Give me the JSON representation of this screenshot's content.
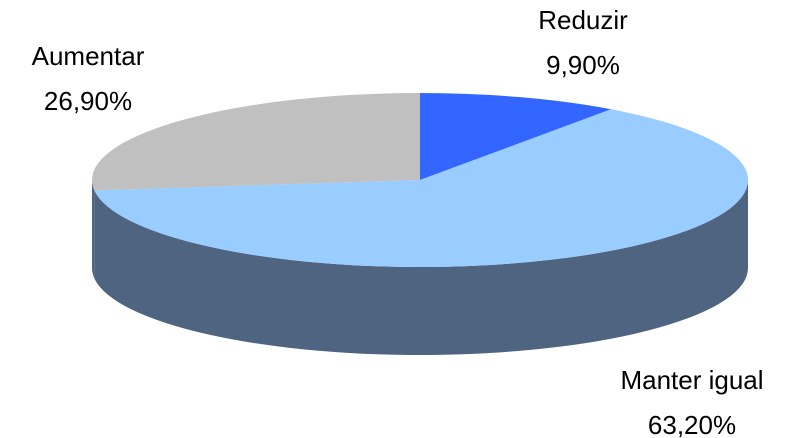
{
  "chart_data": {
    "type": "pie",
    "categories": [
      "Reduzir",
      "Manter igual",
      "Aumentar"
    ],
    "values": [
      9.9,
      63.2,
      26.9
    ],
    "value_labels": [
      "9,90%",
      "63,20%",
      "26,90%"
    ],
    "colors": [
      "#3366ff",
      "#99ccff",
      "#c0c0c0"
    ],
    "side_color": "#4f6480"
  }
}
